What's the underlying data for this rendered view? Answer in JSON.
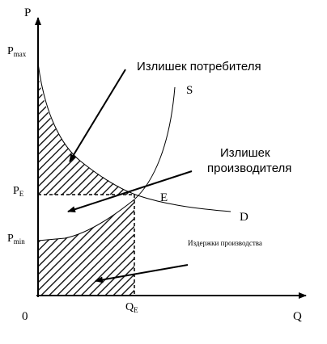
{
  "labels": {
    "p_axis": "P",
    "q_axis": "Q",
    "origin": "0",
    "pmax_main": "P",
    "pmax_sub": "max",
    "pe_main": "P",
    "pe_sub": "E",
    "pmin_main": "P",
    "pmin_sub": "min",
    "qe_main": "Q",
    "qe_sub": "E",
    "supply": "S",
    "demand": "D",
    "equilibrium": "E",
    "consumer_surplus": "Излишек потребителя",
    "producer_surplus_line1": "Излишек",
    "producer_surplus_line2": "производителя",
    "production_costs": "Издержки производства"
  }
}
